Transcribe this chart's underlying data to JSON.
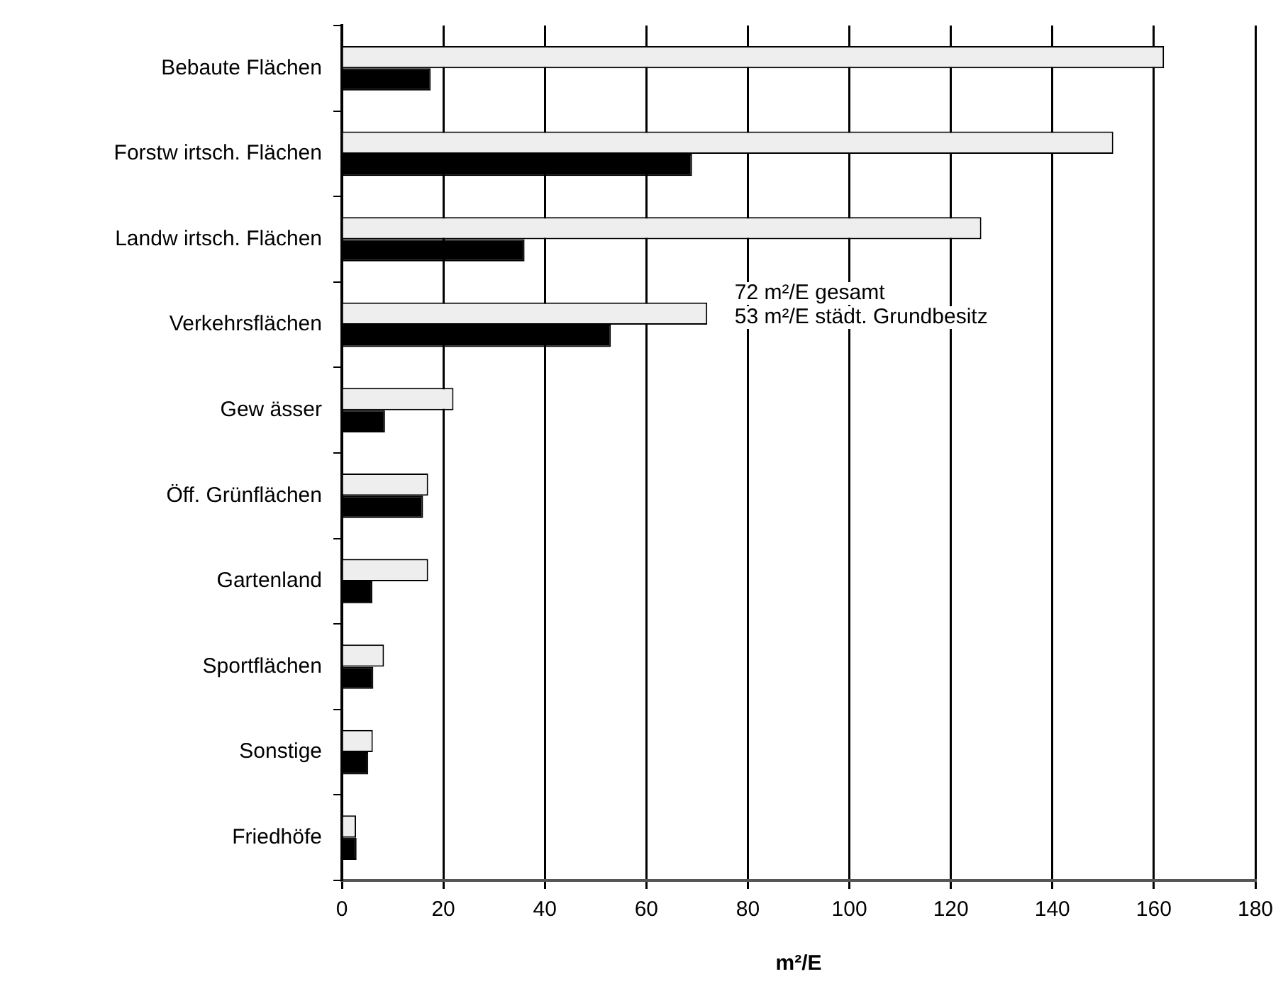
{
  "chart_data": {
    "type": "bar",
    "orientation": "horizontal",
    "xlabel": "m²/E",
    "categories": [
      "Bebaute Flächen",
      "Forstw irtsch. Flächen",
      "Landw irtsch. Flächen",
      "Verkehrsflächen",
      "Gew ässer",
      "Öff. Grünflächen",
      "Gartenland",
      "Sportflächen",
      "Sonstige",
      "Friedhöfe"
    ],
    "series": [
      {
        "color": "#eeeeee",
        "values": [
          162,
          152,
          126,
          72,
          22,
          17,
          17,
          8.3,
          6.1,
          2.8
        ]
      },
      {
        "color": "#000000",
        "values": [
          17.5,
          69,
          36,
          53,
          8.5,
          16,
          6,
          6.2,
          5.2,
          2.9
        ]
      }
    ],
    "xlim": [
      0,
      180
    ],
    "xticks": [
      0,
      20,
      40,
      60,
      80,
      100,
      120,
      140,
      160,
      180
    ],
    "grid": "x",
    "legend": false,
    "annotations": [
      "72 m²/E gesamt",
      "53 m²/E städt. Grundbesitz"
    ]
  }
}
